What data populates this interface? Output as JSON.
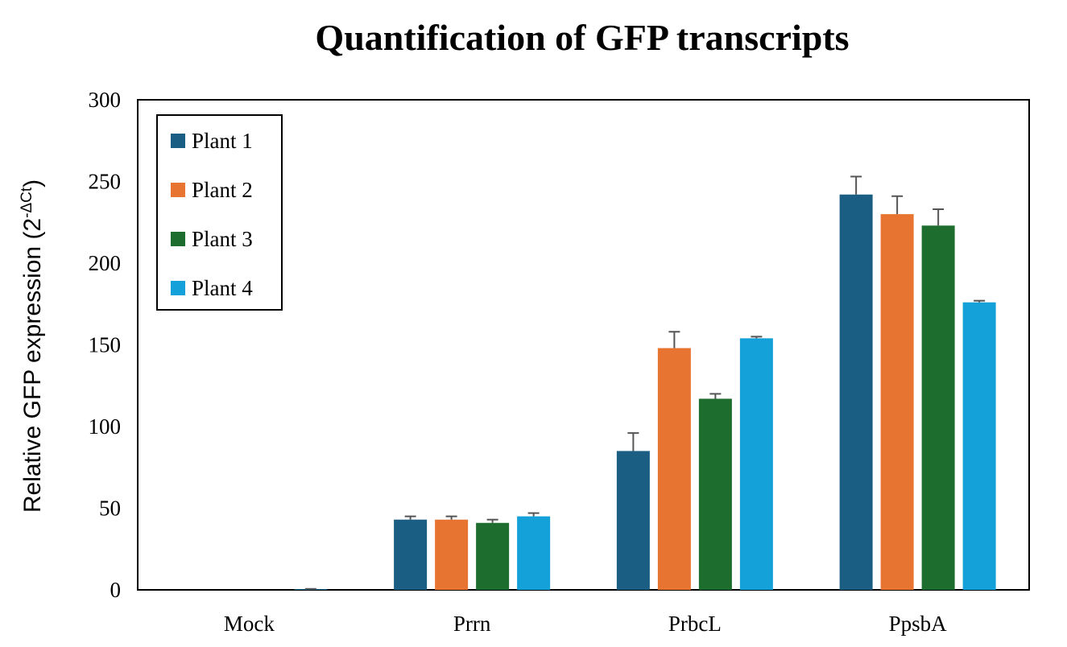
{
  "chart_data": {
    "type": "bar",
    "title": "Quantification of GFP transcripts",
    "xlabel": "",
    "ylabel": "Relative GFP expression (2",
    "ylabel_superscript": "-ΔCt",
    "ylabel_close": ")",
    "categories": [
      "Mock",
      "Prrn",
      "PrbcL",
      "PpsbA"
    ],
    "ylim": [
      0,
      300
    ],
    "yticks": [
      0,
      50,
      100,
      150,
      200,
      250,
      300
    ],
    "legend_position": "top-left",
    "grid": false,
    "series": [
      {
        "name": "Plant 1",
        "color": "#1a5e83",
        "values": [
          0,
          43,
          85,
          242
        ],
        "errors": [
          0,
          2,
          11,
          11
        ]
      },
      {
        "name": "Plant 2",
        "color": "#e87432",
        "values": [
          0,
          43,
          148,
          230
        ],
        "errors": [
          0,
          2,
          10,
          11
        ]
      },
      {
        "name": "Plant 3",
        "color": "#1d6e2e",
        "values": [
          0,
          41,
          117,
          223
        ],
        "errors": [
          0,
          2,
          3,
          10
        ]
      },
      {
        "name": "Plant 4",
        "color": "#14a0d8",
        "values": [
          0.3,
          45,
          154,
          176
        ],
        "errors": [
          0.3,
          2,
          1,
          1
        ]
      }
    ]
  }
}
